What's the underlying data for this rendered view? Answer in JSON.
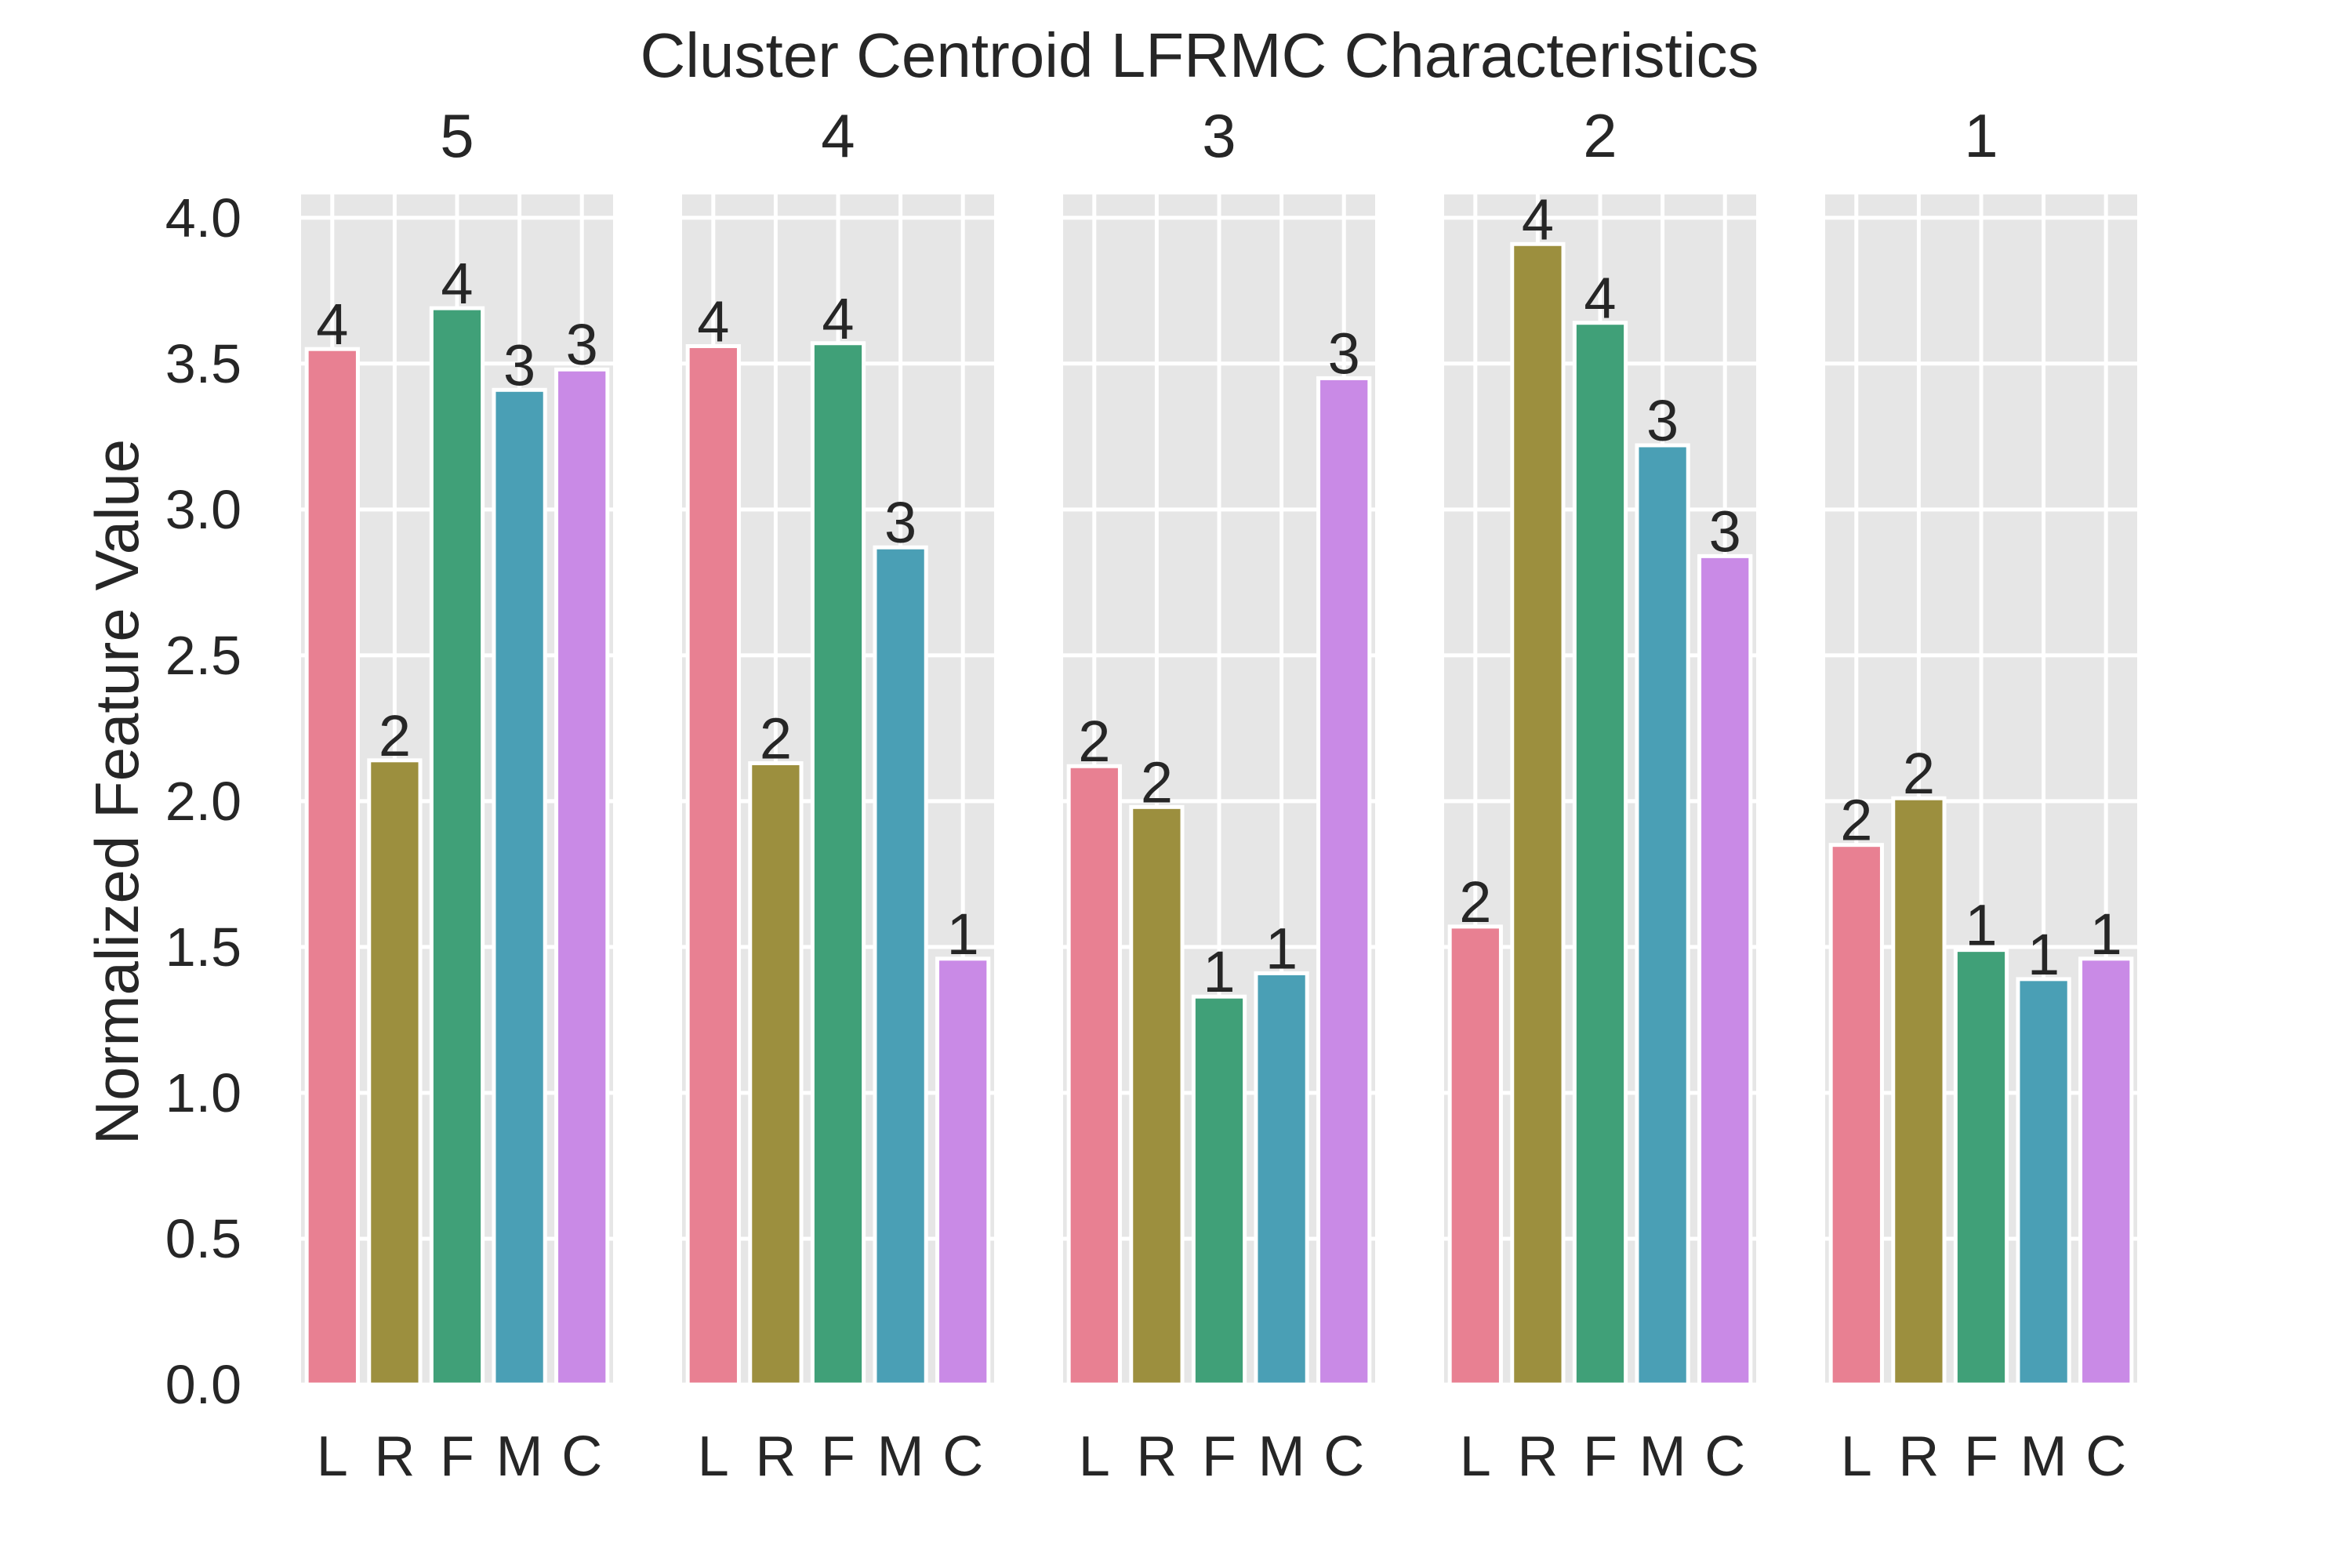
{
  "chart_data": {
    "type": "bar",
    "title": "Cluster Centroid LFRMC Characteristics",
    "xlabel": "",
    "ylabel": "Normalized Feature Value",
    "ylim": [
      0,
      4.08
    ],
    "yticks": [
      "0.0",
      "0.5",
      "1.0",
      "1.5",
      "2.0",
      "2.5",
      "3.0",
      "3.5",
      "4.0"
    ],
    "grid": true,
    "legend": "none",
    "categories": [
      "L",
      "R",
      "F",
      "M",
      "C"
    ],
    "colors": [
      "#e88092",
      "#9c8f3e",
      "#40a078",
      "#4a9fb5",
      "#c98ae6"
    ],
    "panels": [
      {
        "name": "5",
        "values": [
          3.55,
          2.14,
          3.69,
          3.41,
          3.48
        ],
        "labels": [
          "4",
          "2",
          "4",
          "3",
          "3"
        ]
      },
      {
        "name": "4",
        "values": [
          3.56,
          2.13,
          3.57,
          2.87,
          1.46
        ],
        "labels": [
          "4",
          "2",
          "4",
          "3",
          "1"
        ]
      },
      {
        "name": "3",
        "values": [
          2.12,
          1.98,
          1.33,
          1.41,
          3.45
        ],
        "labels": [
          "2",
          "2",
          "1",
          "1",
          "3"
        ]
      },
      {
        "name": "2",
        "values": [
          1.57,
          3.91,
          3.64,
          3.22,
          2.84
        ],
        "labels": [
          "2",
          "4",
          "4",
          "3",
          "3"
        ]
      },
      {
        "name": "1",
        "values": [
          1.85,
          2.01,
          1.49,
          1.39,
          1.46
        ],
        "labels": [
          "2",
          "2",
          "1",
          "1",
          "1"
        ]
      }
    ]
  }
}
